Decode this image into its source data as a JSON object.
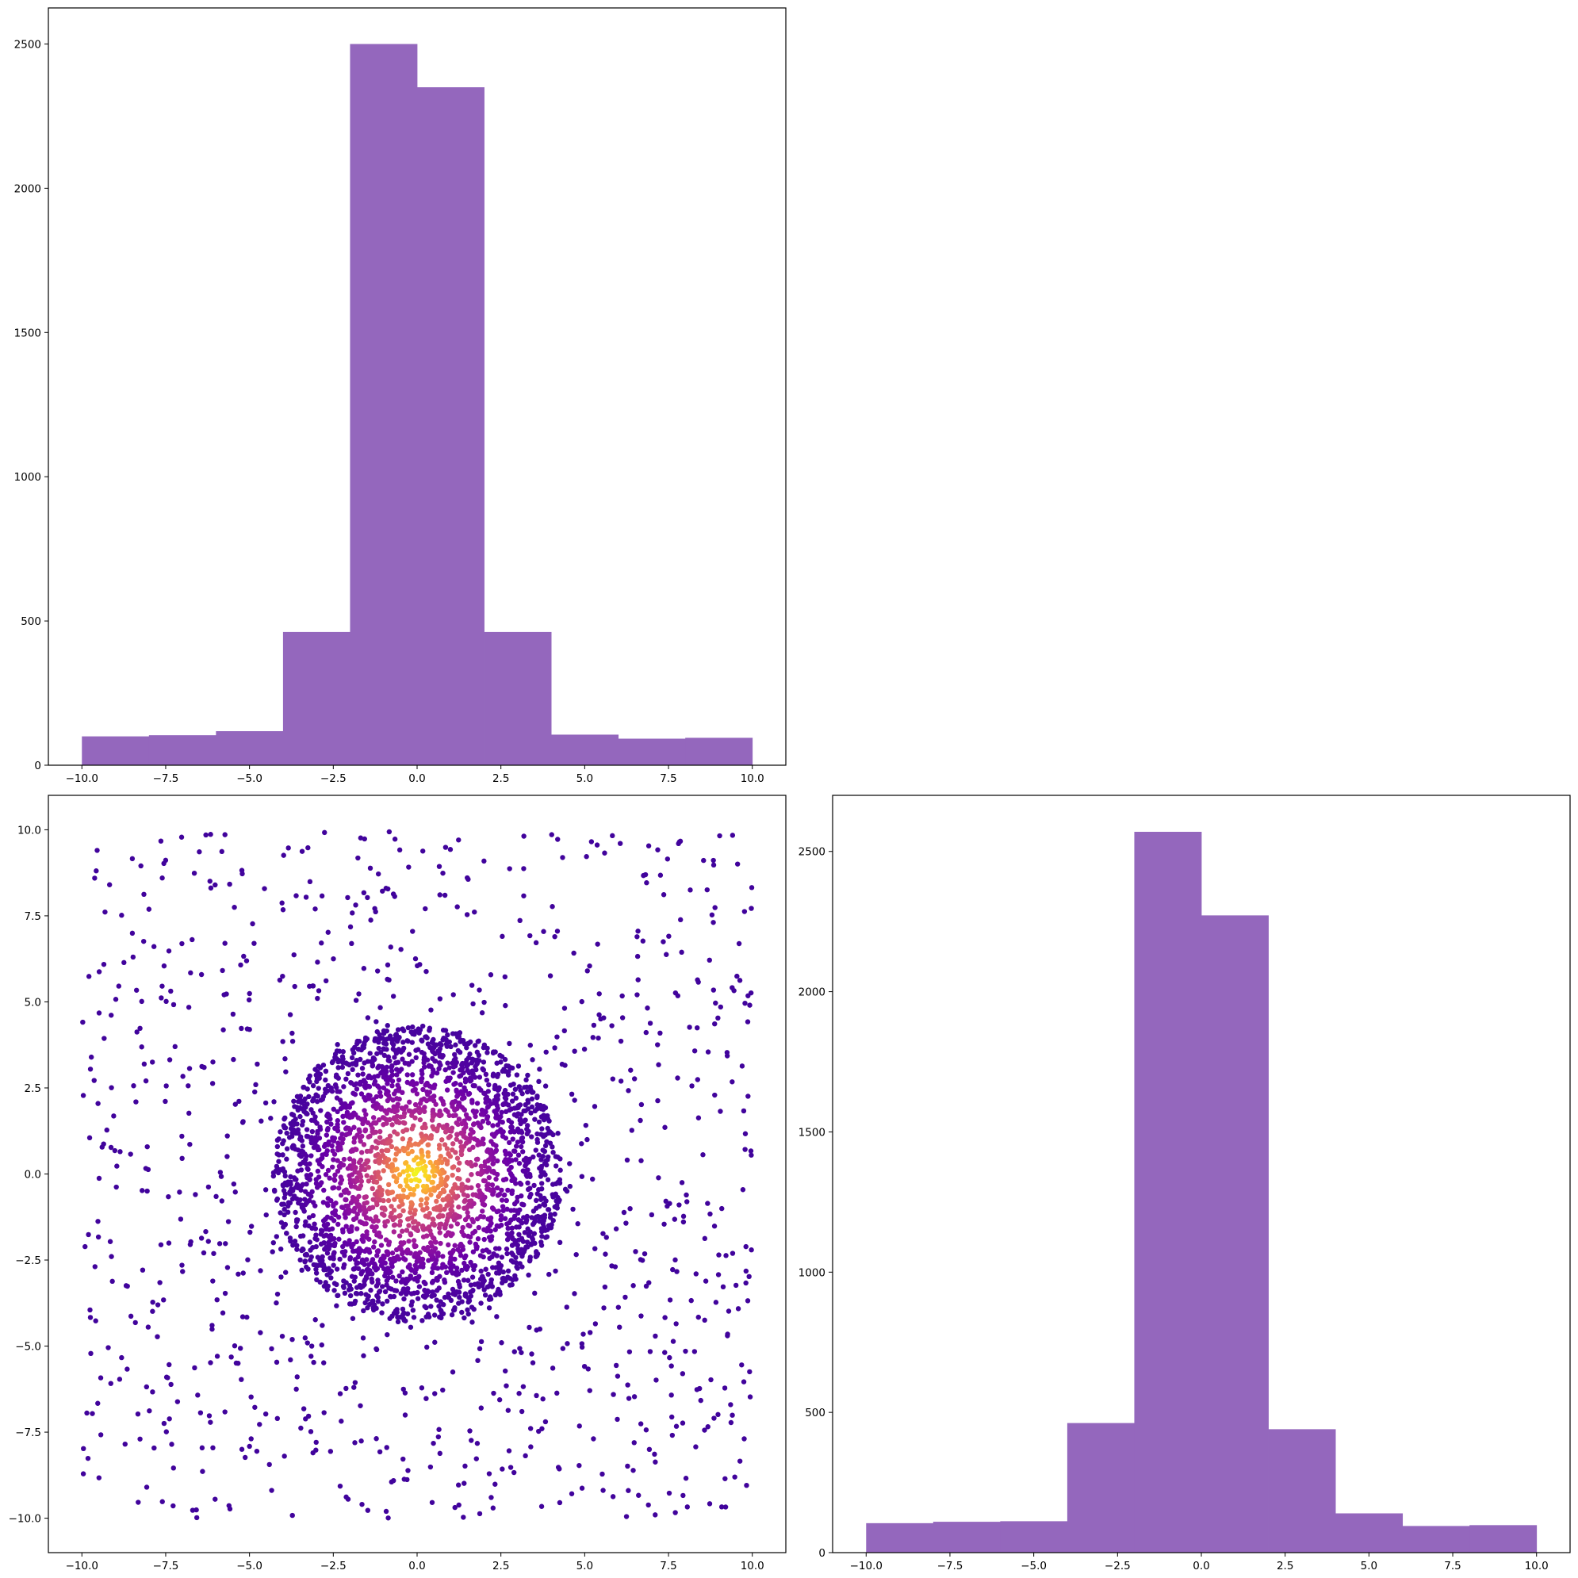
{
  "chart_data": [
    {
      "type": "bar",
      "subtype": "histogram",
      "panel": "top-left",
      "bin_edges": [
        -10,
        -8,
        -6,
        -4,
        -2,
        0,
        2,
        4,
        6,
        8,
        10
      ],
      "values": [
        100,
        104,
        118,
        462,
        2500,
        2350,
        462,
        106,
        92,
        95
      ],
      "xlim": [
        -11,
        11
      ],
      "ylim": [
        0,
        2625
      ],
      "xticks": [
        -10.0,
        -7.5,
        -5.0,
        -2.5,
        0.0,
        2.5,
        5.0,
        7.5,
        10.0
      ],
      "yticks": [
        0,
        500,
        1000,
        1500,
        2000,
        2500
      ],
      "xtick_labels": [
        "−10.0",
        "−7.5",
        "−5.0",
        "−2.5",
        "0.0",
        "2.5",
        "5.0",
        "7.5",
        "10.0"
      ],
      "ytick_labels": [
        "0",
        "500",
        "1000",
        "1500",
        "2000",
        "2500"
      ],
      "color": "#9467bd",
      "title": "",
      "xlabel": "",
      "ylabel": "",
      "grid": false
    },
    {
      "type": "scatter",
      "panel": "bottom-left",
      "description_of_distribution": {
        "uniform_background_points": 1000,
        "uniform_range": [
          -10,
          10
        ],
        "clustered_points": 2500,
        "cluster_center": [
          0,
          0
        ],
        "cluster_radius": 4.3
      },
      "xlim": [
        -11,
        11
      ],
      "ylim": [
        -11,
        11
      ],
      "xticks": [
        -10.0,
        -7.5,
        -5.0,
        -2.5,
        0.0,
        2.5,
        5.0,
        7.5,
        10.0
      ],
      "yticks": [
        -10.0,
        -7.5,
        -5.0,
        -2.5,
        0.0,
        2.5,
        5.0,
        7.5,
        10.0
      ],
      "xtick_labels": [
        "−10.0",
        "−7.5",
        "−5.0",
        "−2.5",
        "0.0",
        "2.5",
        "5.0",
        "7.5",
        "10.0"
      ],
      "ytick_labels": [
        "−10.0",
        "−7.5",
        "−5.0",
        "−2.5",
        "0.0",
        "2.5",
        "5.0",
        "7.5",
        "10.0"
      ],
      "colormap": "plasma",
      "colors": [
        "#3a049a",
        "#6a00a8",
        "#9c179e",
        "#c33d80",
        "#e16462",
        "#f89540",
        "#fcce25",
        "#f0f921"
      ],
      "title": "",
      "xlabel": "",
      "ylabel": "",
      "grid": false
    },
    {
      "type": "bar",
      "subtype": "histogram",
      "panel": "bottom-right",
      "bin_edges": [
        -10,
        -8,
        -6,
        -4,
        -2,
        0,
        2,
        4,
        6,
        8,
        10
      ],
      "values": [
        105,
        110,
        112,
        462,
        2570,
        2272,
        440,
        140,
        95,
        98
      ],
      "xlim": [
        -11,
        11
      ],
      "ylim": [
        0,
        2700
      ],
      "xticks": [
        -10.0,
        -7.5,
        -5.0,
        -2.5,
        0.0,
        2.5,
        5.0,
        7.5,
        10.0
      ],
      "yticks": [
        0,
        500,
        1000,
        1500,
        2000,
        2500
      ],
      "xtick_labels": [
        "−10.0",
        "−7.5",
        "−5.0",
        "−2.5",
        "0.0",
        "2.5",
        "5.0",
        "7.5",
        "10.0"
      ],
      "ytick_labels": [
        "0",
        "500",
        "1000",
        "1500",
        "2000",
        "2500"
      ],
      "color": "#9467bd",
      "title": "",
      "xlabel": "",
      "ylabel": "",
      "grid": false
    }
  ]
}
